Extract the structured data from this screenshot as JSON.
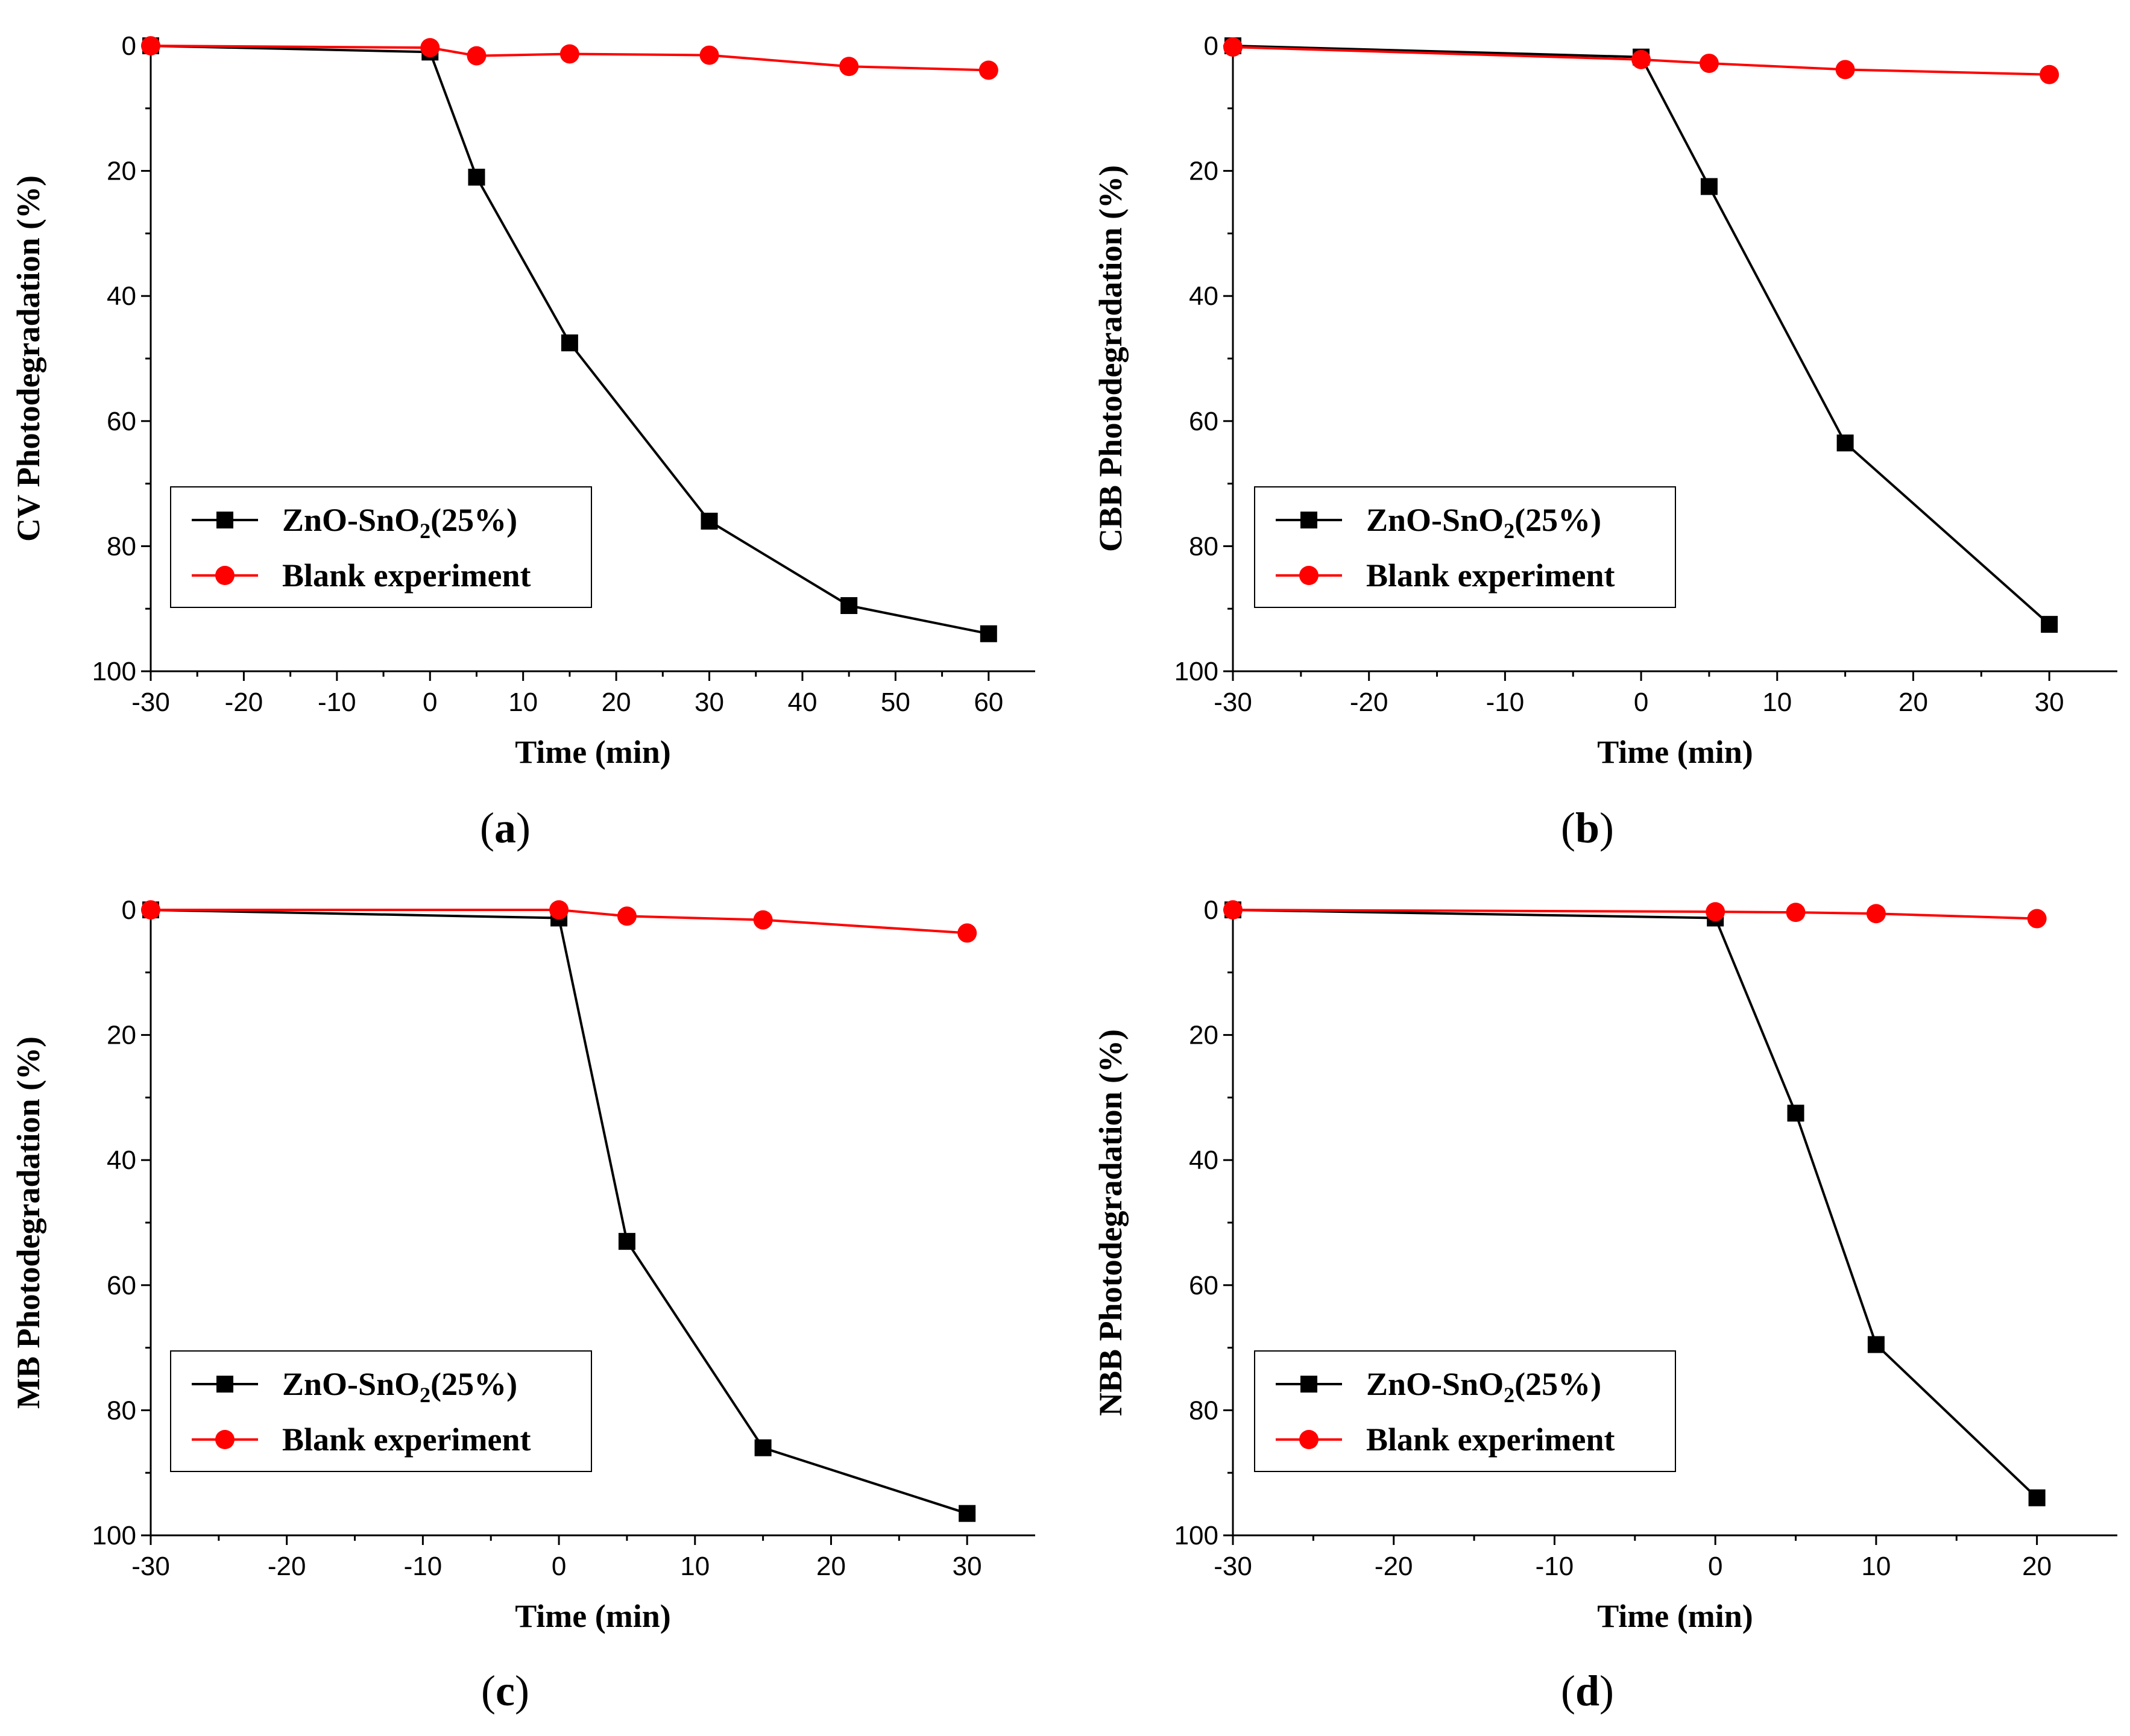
{
  "chart_data": [
    {
      "type": "line",
      "panel_label": "(a)",
      "panel_letter": "a",
      "xlabel": "Time (min)",
      "ylabel": "CV Photodegradation (%)",
      "xlim": [
        -30,
        65
      ],
      "ylim": [
        0,
        100
      ],
      "y_inverted": true,
      "xticks": [
        -30,
        -20,
        -10,
        0,
        10,
        20,
        30,
        40,
        50,
        60
      ],
      "yticks": [
        0,
        20,
        40,
        60,
        80,
        100
      ],
      "legend_position": "bottom-left",
      "series": [
        {
          "name": "ZnO-SnO2(25%)",
          "name_main": "ZnO-SnO",
          "name_sub": "2",
          "name_tail": "(25%)",
          "color": "#000000",
          "marker": "square",
          "x": [
            -30,
            0,
            5,
            15,
            30,
            45,
            60
          ],
          "y": [
            0,
            1,
            21,
            47.5,
            76,
            89.5,
            94
          ]
        },
        {
          "name": "Blank experiment",
          "color": "#ff0000",
          "marker": "circle",
          "x": [
            -30,
            0,
            5,
            15,
            30,
            45,
            60
          ],
          "y": [
            0,
            0.3,
            1.6,
            1.3,
            1.5,
            3.3,
            3.9
          ]
        }
      ]
    },
    {
      "type": "line",
      "panel_label": "(b)",
      "panel_letter": "b",
      "xlabel": "Time (min)",
      "ylabel": "CBB Photodegradation (%)",
      "xlim": [
        -30,
        35
      ],
      "ylim": [
        0,
        100
      ],
      "y_inverted": true,
      "xticks": [
        -30,
        -20,
        -10,
        0,
        10,
        20,
        30
      ],
      "yticks": [
        0,
        20,
        40,
        60,
        80,
        100
      ],
      "legend_position": "bottom-left",
      "series": [
        {
          "name": "ZnO-SnO2(25%)",
          "name_main": "ZnO-SnO",
          "name_sub": "2",
          "name_tail": "(25%)",
          "color": "#000000",
          "marker": "square",
          "x": [
            -30,
            0,
            5,
            15,
            30
          ],
          "y": [
            0,
            1.8,
            22.5,
            63.5,
            92.5
          ]
        },
        {
          "name": "Blank experiment",
          "color": "#ff0000",
          "marker": "circle",
          "x": [
            -30,
            0,
            5,
            15,
            30
          ],
          "y": [
            0.2,
            2.2,
            2.8,
            3.8,
            4.6
          ]
        }
      ]
    },
    {
      "type": "line",
      "panel_label": "(c)",
      "panel_letter": "c",
      "xlabel": "Time (min)",
      "ylabel": "MB Photodegradation (%)",
      "xlim": [
        -30,
        35
      ],
      "ylim": [
        0,
        100
      ],
      "y_inverted": true,
      "xticks": [
        -30,
        -20,
        -10,
        0,
        10,
        20,
        30
      ],
      "yticks": [
        0,
        20,
        40,
        60,
        80,
        100
      ],
      "legend_position": "bottom-left",
      "series": [
        {
          "name": "ZnO-SnO2(25%)",
          "name_main": "ZnO-SnO",
          "name_sub": "2",
          "name_tail": "(25%)",
          "color": "#000000",
          "marker": "square",
          "x": [
            -30,
            0,
            5,
            15,
            30
          ],
          "y": [
            0,
            1.3,
            53,
            86,
            96.5
          ]
        },
        {
          "name": "Blank experiment",
          "color": "#ff0000",
          "marker": "circle",
          "x": [
            -30,
            0,
            5,
            15,
            30
          ],
          "y": [
            0,
            0,
            1,
            1.6,
            3.7
          ]
        }
      ]
    },
    {
      "type": "line",
      "panel_label": "(d)",
      "panel_letter": "d",
      "xlabel": "Time (min)",
      "ylabel": "NBB Photodegradation (%)",
      "xlim": [
        -30,
        25
      ],
      "ylim": [
        0,
        100
      ],
      "y_inverted": true,
      "xticks": [
        -30,
        -20,
        -10,
        0,
        10,
        20
      ],
      "yticks": [
        0,
        20,
        40,
        60,
        80,
        100
      ],
      "legend_position": "bottom-left",
      "series": [
        {
          "name": "ZnO-SnO2(25%)",
          "name_main": "ZnO-SnO",
          "name_sub": "2",
          "name_tail": "(25%)",
          "color": "#000000",
          "marker": "square",
          "x": [
            -30,
            0,
            5,
            10,
            20
          ],
          "y": [
            0,
            1.3,
            32.5,
            69.5,
            94
          ]
        },
        {
          "name": "Blank experiment",
          "color": "#ff0000",
          "marker": "circle",
          "x": [
            -30,
            0,
            5,
            10,
            20
          ],
          "y": [
            0,
            0.3,
            0.4,
            0.6,
            1.4
          ]
        }
      ]
    }
  ]
}
